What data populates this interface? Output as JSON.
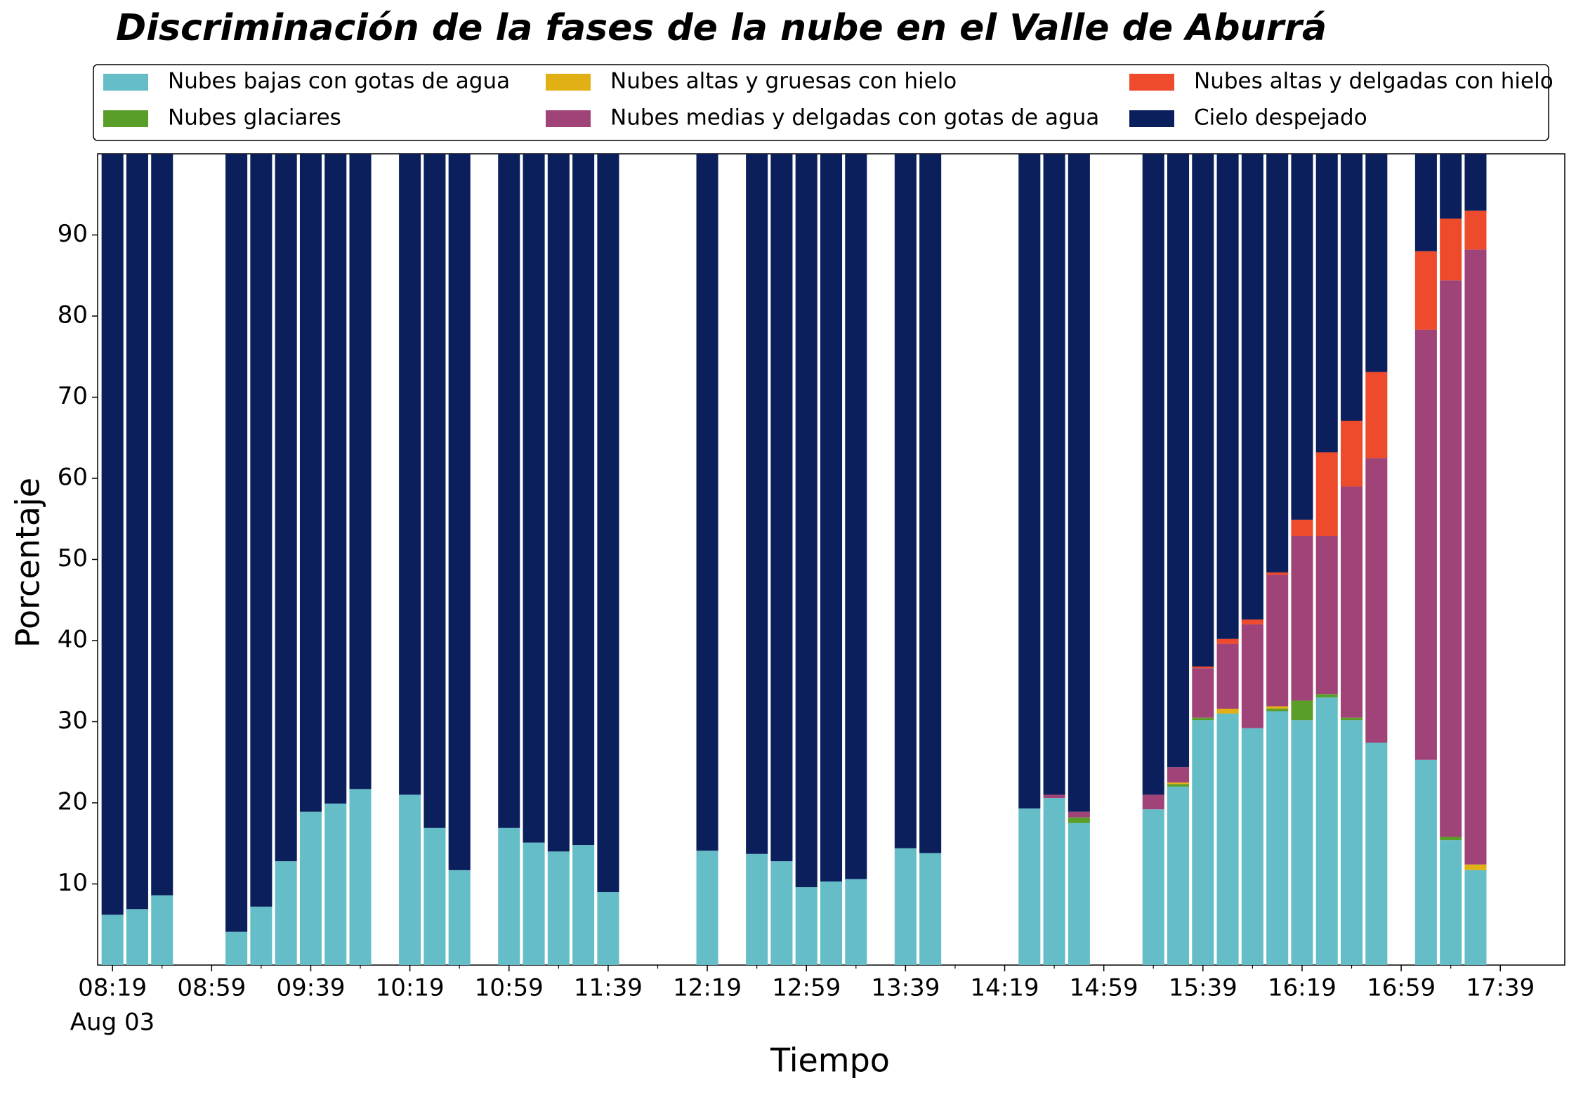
{
  "chart_data": {
    "type": "stacked_bar",
    "title": "Discriminación de la fases de la nube en el Valle de Aburrá",
    "x_label": "Tiempo",
    "y_label": "Porcentaje",
    "x_date_label": "Aug 03",
    "categories": [
      "08:19",
      null,
      null,
      null,
      "08:59",
      null,
      null,
      null,
      "09:39",
      null,
      null,
      null,
      "10:19",
      null,
      null,
      null,
      "10:59",
      null,
      null,
      null,
      "11:39",
      null,
      null,
      null,
      "12:19",
      null,
      null,
      null,
      "12:59",
      null,
      null,
      null,
      "13:39",
      null,
      null,
      null,
      "14:19",
      null,
      null,
      null,
      "14:59",
      null,
      null,
      null,
      "15:39",
      null,
      null,
      null,
      "16:19",
      null,
      null,
      null,
      "16:59",
      null,
      null,
      null,
      "17:39"
    ],
    "ylim": [
      0,
      100
    ],
    "yticks": [
      10,
      20,
      30,
      40,
      50,
      60,
      70,
      80,
      90
    ],
    "legend": "top",
    "series": [
      {
        "name": "Nubes bajas con gotas de agua",
        "color": "#65bdc8",
        "values": [
          6.2,
          6.9,
          8.6,
          null,
          null,
          4.1,
          7.2,
          12.8,
          18.9,
          19.9,
          21.7,
          null,
          21.0,
          16.9,
          11.7,
          null,
          16.9,
          15.1,
          14.0,
          14.8,
          9.0,
          null,
          null,
          null,
          14.1,
          null,
          13.7,
          12.8,
          9.6,
          10.3,
          10.6,
          null,
          14.4,
          13.8,
          null,
          null,
          null,
          19.3,
          20.6,
          17.5,
          null,
          null,
          19.2,
          22.0,
          30.2,
          31.0,
          29.2,
          31.3,
          30.2,
          33.0,
          30.2,
          27.4,
          null,
          25.3,
          15.4,
          11.7,
          null
        ]
      },
      {
        "name": "Nubes glaciares",
        "color": "#5a9e2a",
        "values": [
          0,
          0,
          0,
          null,
          null,
          0,
          0,
          0,
          0,
          0,
          0,
          null,
          0,
          0,
          0,
          null,
          0,
          0,
          0,
          0,
          0,
          null,
          null,
          null,
          0,
          null,
          0,
          0,
          0,
          0,
          0,
          null,
          0,
          0,
          null,
          null,
          null,
          0,
          0,
          0.7,
          null,
          null,
          0,
          0.3,
          0.3,
          0,
          0,
          0.3,
          2.4,
          0.4,
          0.3,
          0,
          null,
          0,
          0.4,
          0,
          null
        ]
      },
      {
        "name": "Nubes altas y gruesas con hielo",
        "color": "#e0b014",
        "values": [
          0,
          0,
          0,
          null,
          null,
          0,
          0,
          0,
          0,
          0,
          0,
          null,
          0,
          0,
          0,
          null,
          0,
          0,
          0,
          0,
          0,
          null,
          null,
          null,
          0,
          null,
          0,
          0,
          0,
          0,
          0,
          null,
          0,
          0,
          null,
          null,
          null,
          0,
          0,
          0,
          null,
          null,
          0,
          0.2,
          0,
          0.6,
          0,
          0.3,
          0,
          0,
          0,
          0,
          null,
          0,
          0,
          0.7,
          null
        ]
      },
      {
        "name": "Nubes medias y delgadas con gotas de agua",
        "color": "#a04378",
        "values": [
          0,
          0,
          0,
          null,
          null,
          0,
          0,
          0,
          0,
          0,
          0,
          null,
          0,
          0,
          0,
          null,
          0,
          0,
          0,
          0,
          0,
          null,
          null,
          null,
          0,
          null,
          0,
          0,
          0,
          0,
          0,
          null,
          0,
          0,
          null,
          null,
          null,
          0,
          0.4,
          0.7,
          null,
          null,
          1.8,
          1.9,
          6.1,
          8.0,
          12.8,
          16.2,
          20.3,
          19.5,
          28.5,
          35.1,
          null,
          53.0,
          68.6,
          75.8,
          null
        ]
      },
      {
        "name": "Nubes altas y delgadas con hielo",
        "color": "#ee4a2c",
        "values": [
          0,
          0,
          0,
          null,
          null,
          0,
          0,
          0,
          0,
          0,
          0,
          null,
          0,
          0,
          0,
          null,
          0,
          0,
          0,
          0,
          0,
          null,
          null,
          null,
          0,
          null,
          0,
          0,
          0,
          0,
          0,
          null,
          0,
          0,
          null,
          null,
          null,
          0,
          0,
          0,
          null,
          null,
          0,
          0,
          0.2,
          0.6,
          0.6,
          0.3,
          2.0,
          10.3,
          8.1,
          10.6,
          null,
          9.7,
          7.6,
          4.8,
          null
        ]
      },
      {
        "name": "Cielo despejado",
        "color": "#0a1f5c",
        "values": [
          93.8,
          93.1,
          91.4,
          null,
          null,
          95.9,
          92.8,
          87.2,
          81.1,
          80.1,
          78.3,
          null,
          79.0,
          83.1,
          88.3,
          null,
          83.1,
          84.9,
          86.0,
          85.2,
          91.0,
          null,
          null,
          null,
          85.9,
          null,
          86.3,
          87.2,
          90.4,
          89.7,
          89.4,
          null,
          85.6,
          86.2,
          null,
          null,
          null,
          80.7,
          79.0,
          81.1,
          null,
          null,
          79.0,
          75.6,
          63.2,
          59.8,
          57.4,
          51.6,
          45.1,
          36.8,
          32.9,
          26.9,
          null,
          12.0,
          8.0,
          7.0,
          null
        ]
      }
    ]
  }
}
